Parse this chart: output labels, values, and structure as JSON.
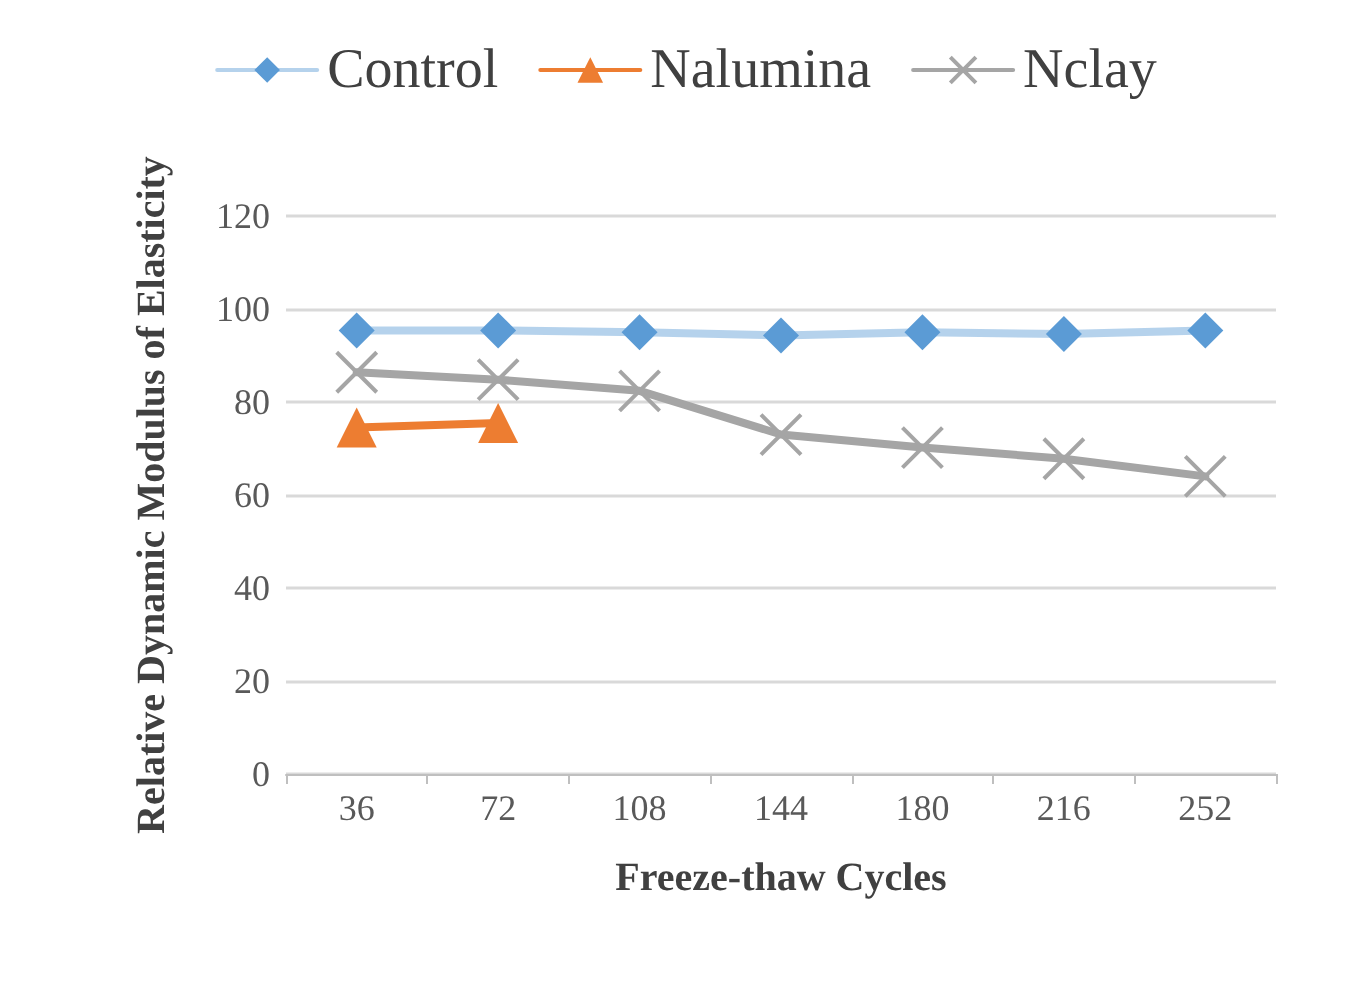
{
  "chart_data": {
    "type": "line",
    "xlabel": "Freeze-thaw Cycles",
    "ylabel": "Relative Dynamic Modulus of Elasticity",
    "categories": [
      "36",
      "72",
      "108",
      "144",
      "180",
      "216",
      "252"
    ],
    "series": [
      {
        "name": "Control",
        "color": "#5b9bd5",
        "marker": "diamond",
        "values": [
          95.4,
          95.4,
          95,
          94.3,
          95,
          94.6,
          95.4
        ]
      },
      {
        "name": "Nalumina",
        "color": "#ed7d31",
        "marker": "triangle",
        "values": [
          74.5,
          75.5,
          null,
          null,
          null,
          null,
          null
        ]
      },
      {
        "name": "Nclay",
        "color": "#a5a5a5",
        "marker": "cross",
        "values": [
          86.4,
          84.8,
          82.4,
          73,
          70.2,
          67.8,
          64
        ]
      }
    ],
    "ylim": [
      0,
      120
    ],
    "yticks": [
      0,
      20,
      40,
      60,
      80,
      100,
      120
    ],
    "grid": "y",
    "legend": "top"
  }
}
